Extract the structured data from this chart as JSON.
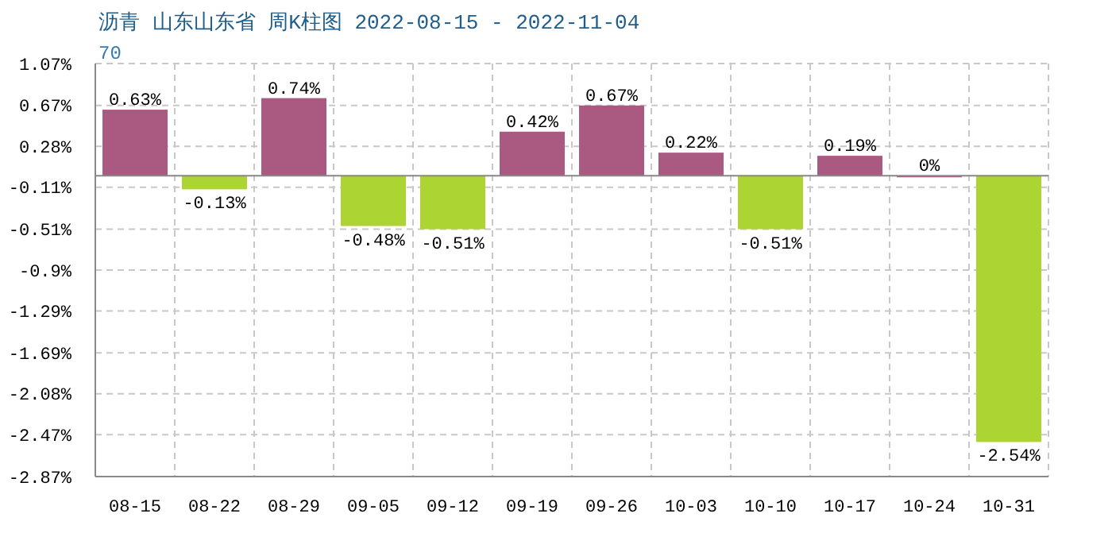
{
  "chart_data": {
    "type": "bar",
    "title": "沥青 山东山东省 周K柱图 2022-08-15 - 2022-11-04",
    "subtitle": "70",
    "categories": [
      "08-15",
      "08-22",
      "08-29",
      "09-05",
      "09-12",
      "09-19",
      "09-26",
      "10-03",
      "10-10",
      "10-17",
      "10-24",
      "10-31"
    ],
    "values": [
      0.63,
      -0.13,
      0.74,
      -0.48,
      -0.51,
      0.42,
      0.67,
      0.22,
      -0.51,
      0.19,
      0,
      -2.54
    ],
    "colors": [
      "#aa5a80",
      "#acd433",
      "#aa5a80",
      "#acd433",
      "#acd433",
      "#aa5a80",
      "#aa5a80",
      "#aa5a80",
      "#acd433",
      "#aa5a80",
      "#aa5a80",
      "#acd433"
    ],
    "value_labels": [
      "0.63%",
      "-0.13%",
      "0.74%",
      "-0.48%",
      "-0.51%",
      "0.42%",
      "0.67%",
      "0.22%",
      "-0.51%",
      "0.19%",
      "0%",
      "-2.54%"
    ],
    "ylim": [
      -2.87,
      1.07
    ],
    "yticks": [
      {
        "value": 1.07,
        "label": "1.07%"
      },
      {
        "value": 0.67,
        "label": "0.67%"
      },
      {
        "value": 0.28,
        "label": "0.28%"
      },
      {
        "value": -0.11,
        "label": "-0.11%"
      },
      {
        "value": -0.51,
        "label": "-0.51%"
      },
      {
        "value": -0.9,
        "label": "-0.9%"
      },
      {
        "value": -1.29,
        "label": "-1.29%"
      },
      {
        "value": -1.69,
        "label": "-1.69%"
      },
      {
        "value": -2.08,
        "label": "-2.08%"
      },
      {
        "value": -2.47,
        "label": "-2.47%"
      },
      {
        "value": -2.87,
        "label": "-2.87%"
      }
    ],
    "grid": true
  }
}
